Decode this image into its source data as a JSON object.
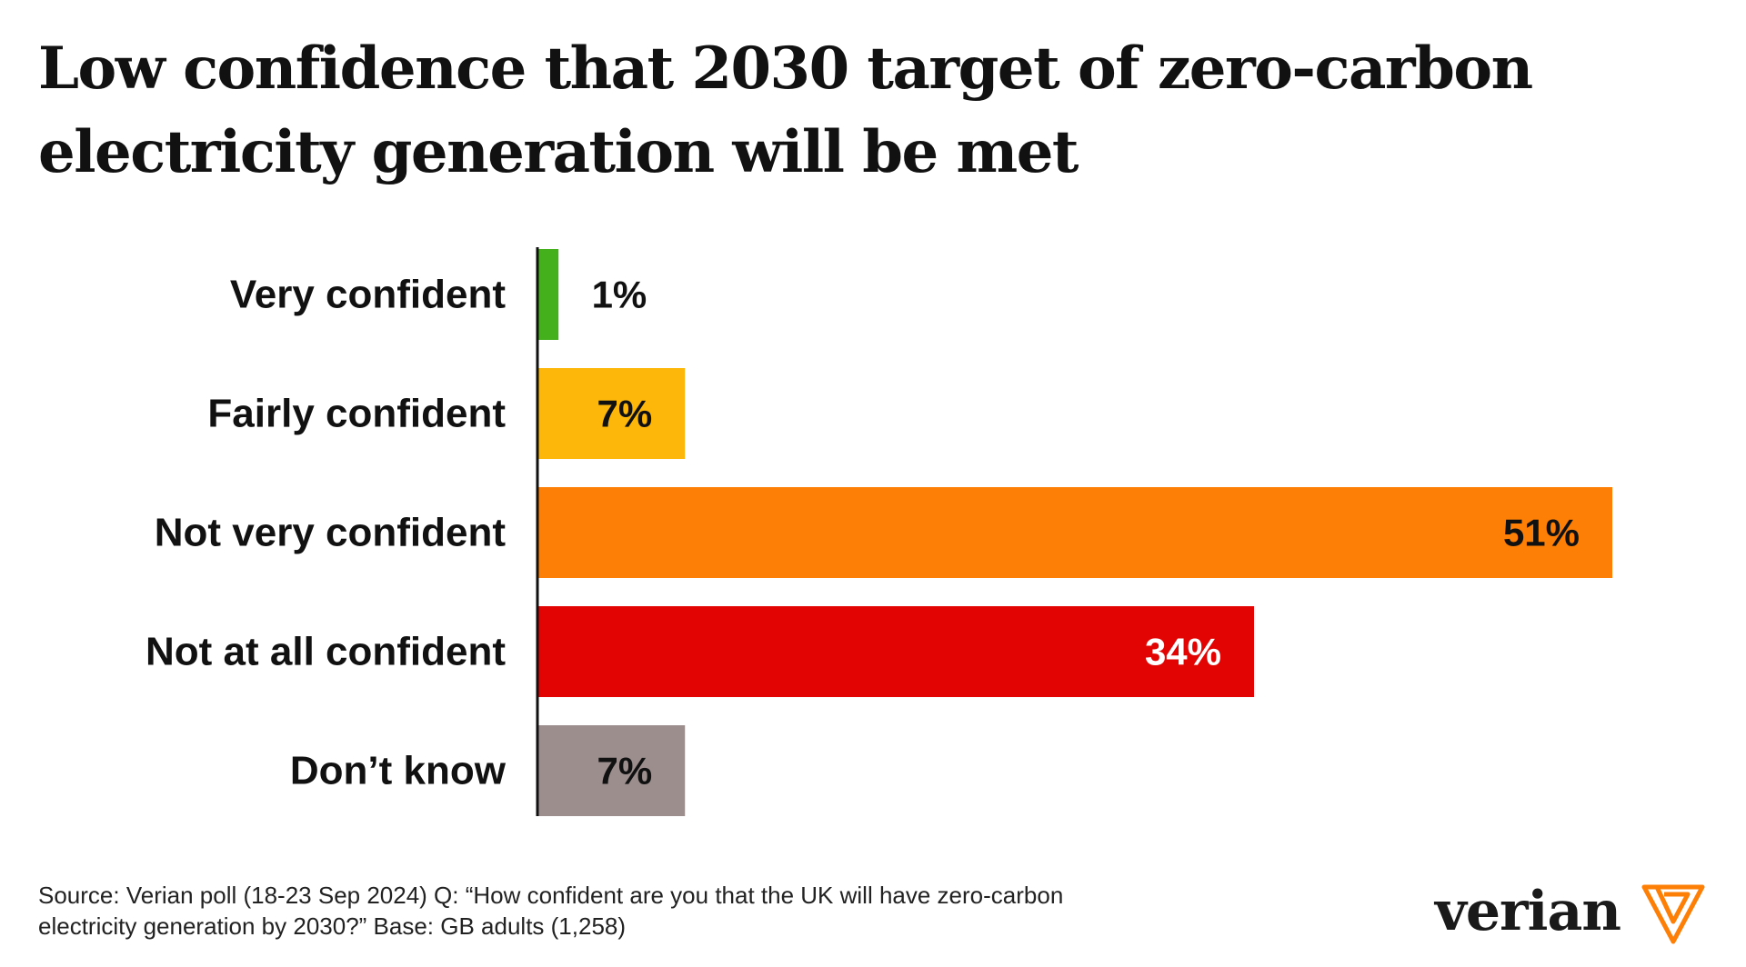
{
  "title": {
    "line1": "Low confidence that 2030 target of zero-carbon",
    "line2": "electricity generation will be met"
  },
  "chart_data": {
    "type": "bar",
    "orientation": "horizontal",
    "categories": [
      "Very confident",
      "Fairly confident",
      "Not very confident",
      "Not at all confident",
      "Don’t know"
    ],
    "values": [
      1,
      7,
      51,
      34,
      7
    ],
    "value_labels": [
      "1%",
      "7%",
      "51%",
      "34%",
      "7%"
    ],
    "colors": [
      "#44b11c",
      "#fdb70b",
      "#fe7f06",
      "#e20303",
      "#9d8e8e"
    ],
    "label_colors": [
      "#111111",
      "#111111",
      "#111111",
      "#ffffff",
      "#111111"
    ],
    "unit": "%",
    "xlim": [
      0,
      51
    ],
    "grid": false,
    "legend": "none",
    "xlabel": "",
    "ylabel": ""
  },
  "source": {
    "line1": "Source: Verian poll (18-23 Sep 2024) Q: “How confident are you that the UK will have zero-carbon",
    "line2": "electricity generation by 2030?” Base: GB adults (1,258)"
  },
  "brand": {
    "name": "verian",
    "accent": "#fe7f06"
  }
}
